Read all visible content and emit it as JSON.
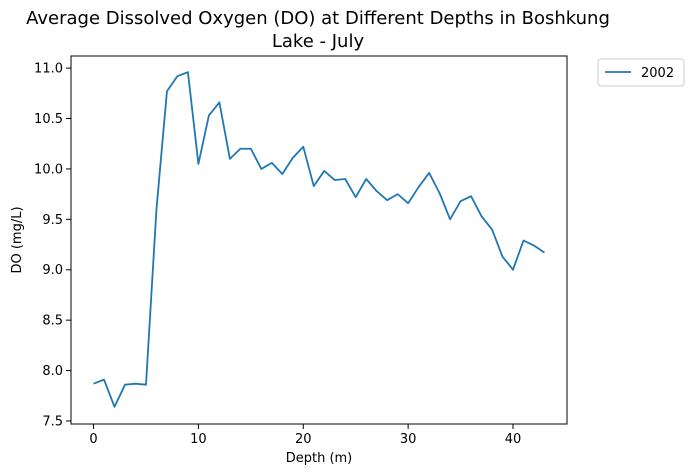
{
  "chart_data": {
    "type": "line",
    "title_lines": [
      "Average Dissolved Oxygen (DO) at Different Depths in Boshkung",
      "Lake - July"
    ],
    "xlabel": "Depth (m)",
    "ylabel": "DO (mg/L)",
    "xlim": [
      -2.15,
      45.15
    ],
    "ylim": [
      7.47,
      11.12
    ],
    "xticks": [
      0,
      10,
      20,
      30,
      40
    ],
    "yticks": [
      7.5,
      8.0,
      8.5,
      9.0,
      9.5,
      10.0,
      10.5,
      11.0
    ],
    "xtick_labels": [
      "0",
      "10",
      "20",
      "30",
      "40"
    ],
    "ytick_labels": [
      "7.5",
      "8.0",
      "8.5",
      "9.0",
      "9.5",
      "10.0",
      "10.5",
      "11.0"
    ],
    "grid": false,
    "legend_position": "outside-top-right",
    "series": [
      {
        "name": "2002",
        "color": "#1f77b4",
        "x": [
          0,
          1,
          2,
          3,
          4,
          5,
          6,
          7,
          8,
          9,
          10,
          11,
          12,
          13,
          14,
          15,
          16,
          17,
          18,
          19,
          20,
          21,
          22,
          23,
          24,
          25,
          26,
          27,
          28,
          29,
          30,
          31,
          32,
          33,
          34,
          35,
          36,
          37,
          38,
          39,
          40,
          41,
          42,
          43
        ],
        "y": [
          7.87,
          7.91,
          7.64,
          7.86,
          7.87,
          7.86,
          9.6,
          10.77,
          10.92,
          10.96,
          10.05,
          10.53,
          10.66,
          10.1,
          10.2,
          10.2,
          10.0,
          10.06,
          9.95,
          10.11,
          10.22,
          9.83,
          9.98,
          9.89,
          9.9,
          9.72,
          9.9,
          9.78,
          9.69,
          9.75,
          9.66,
          9.82,
          9.96,
          9.76,
          9.5,
          9.68,
          9.73,
          9.53,
          9.4,
          9.13,
          9.0,
          9.29,
          9.24,
          9.17
        ]
      }
    ]
  }
}
